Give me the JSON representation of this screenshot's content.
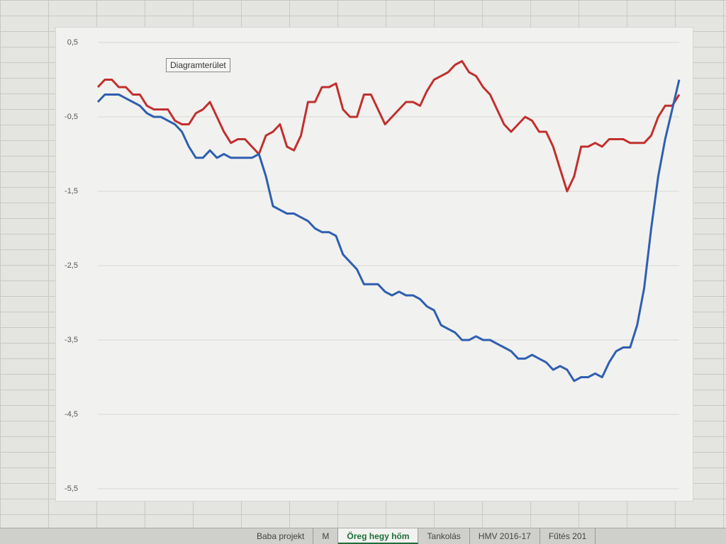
{
  "chart_data": {
    "type": "line",
    "ylim": [
      -5.5,
      0.5
    ],
    "yticks": [
      {
        "value": 0.5,
        "label": "0,5"
      },
      {
        "value": -0.5,
        "label": "-0,5"
      },
      {
        "value": -1.5,
        "label": "-1,5"
      },
      {
        "value": -2.5,
        "label": "-2,5"
      },
      {
        "value": -3.5,
        "label": "-3,5"
      },
      {
        "value": -4.5,
        "label": "-4,5"
      },
      {
        "value": -5.5,
        "label": "-5,5"
      }
    ],
    "grid": true,
    "series": [
      {
        "color": "#c0302e",
        "values": [
          -0.1,
          0,
          0,
          -0.1,
          -0.1,
          -0.2,
          -0.2,
          -0.35,
          -0.4,
          -0.4,
          -0.4,
          -0.55,
          -0.6,
          -0.6,
          -0.45,
          -0.4,
          -0.3,
          -0.5,
          -0.7,
          -0.85,
          -0.8,
          -0.8,
          -0.9,
          -1,
          -0.75,
          -0.7,
          -0.6,
          -0.9,
          -0.95,
          -0.75,
          -0.3,
          -0.3,
          -0.1,
          -0.1,
          -0.05,
          -0.4,
          -0.5,
          -0.5,
          -0.2,
          -0.2,
          -0.4,
          -0.6,
          -0.5,
          -0.4,
          -0.3,
          -0.3,
          -0.35,
          -0.15,
          0,
          0.05,
          0.1,
          0.2,
          0.25,
          0.1,
          0.05,
          -0.1,
          -0.2,
          -0.4,
          -0.6,
          -0.7,
          -0.6,
          -0.5,
          -0.55,
          -0.7,
          -0.7,
          -0.9,
          -1.2,
          -1.5,
          -1.3,
          -0.9,
          -0.9,
          -0.85,
          -0.9,
          -0.8,
          -0.8,
          -0.8,
          -0.85,
          -0.85,
          -0.85,
          -0.75,
          -0.5,
          -0.35,
          -0.35,
          -0.2
        ]
      },
      {
        "color": "#2f5fb0",
        "values": [
          -0.3,
          -0.2,
          -0.2,
          -0.2,
          -0.25,
          -0.3,
          -0.35,
          -0.45,
          -0.5,
          -0.5,
          -0.55,
          -0.6,
          -0.7,
          -0.9,
          -1.05,
          -1.05,
          -0.95,
          -1.05,
          -1,
          -1.05,
          -1.05,
          -1.05,
          -1.05,
          -1,
          -1.3,
          -1.7,
          -1.75,
          -1.8,
          -1.8,
          -1.85,
          -1.9,
          -2,
          -2.05,
          -2.05,
          -2.1,
          -2.35,
          -2.45,
          -2.55,
          -2.75,
          -2.75,
          -2.75,
          -2.85,
          -2.9,
          -2.85,
          -2.9,
          -2.9,
          -2.95,
          -3.05,
          -3.1,
          -3.3,
          -3.35,
          -3.4,
          -3.5,
          -3.5,
          -3.45,
          -3.5,
          -3.5,
          -3.55,
          -3.6,
          -3.65,
          -3.75,
          -3.75,
          -3.7,
          -3.75,
          -3.8,
          -3.9,
          -3.85,
          -3.9,
          -4.05,
          -4,
          -4,
          -3.95,
          -4,
          -3.8,
          -3.65,
          -3.6,
          -3.6,
          -3.3,
          -2.8,
          -2,
          -1.3,
          -0.8,
          -0.4,
          0
        ]
      }
    ]
  },
  "tooltip": "Diagramterület",
  "sheet_tabs": [
    "Baba projekt",
    "M",
    "Öreg hegy hőm",
    "Tankolás",
    "HMV 2016-17",
    "Fűtés 201"
  ],
  "active_tab": 2
}
